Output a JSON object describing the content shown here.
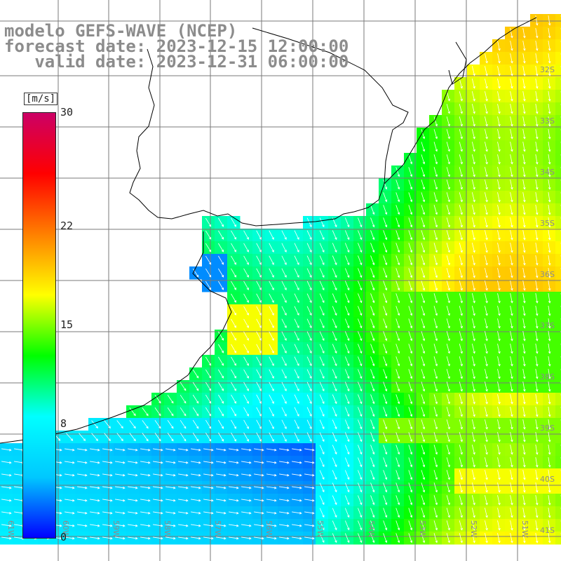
{
  "header": {
    "line1": "modelo GEFS-WAVE (NCEP)",
    "line2": "forecast date: 2023-12-15 12:00:00",
    "line3": "   valid date: 2023-12-31 06:00:00"
  },
  "colorbar": {
    "unit": "[m/s]",
    "min": 0,
    "max": 30,
    "ticks": [
      30,
      22,
      15,
      8,
      0
    ],
    "stops": [
      "#0000ff",
      "#00c8ff",
      "#00ffff",
      "#00ff00",
      "#ffff00",
      "#ff8000",
      "#ff0000",
      "#cc0066"
    ]
  },
  "lat_labels": [
    "32S",
    "33S",
    "34S",
    "35S",
    "36S",
    "37S",
    "38S",
    "39S",
    "40S",
    "41S"
  ],
  "lon_labels": [
    "61W",
    "60W",
    "59W",
    "58W",
    "57W",
    "56W",
    "55W",
    "54W",
    "53W",
    "52W",
    "51W"
  ],
  "colors": {
    "land": "#ffffff",
    "grid": "#7a7a7a",
    "coast": "#000000",
    "arrow": "#ffffff",
    "label": "#8c8c8c"
  }
}
